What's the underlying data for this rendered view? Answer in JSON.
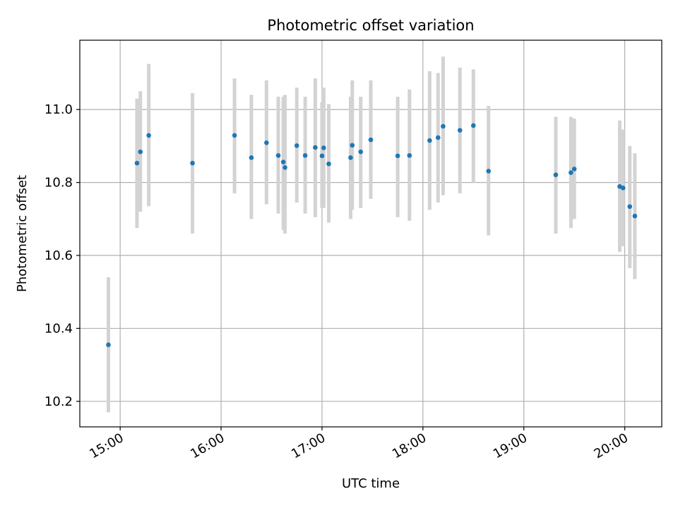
{
  "chart_data": {
    "type": "scatter",
    "title": "Photometric offset variation",
    "xlabel": "UTC time",
    "ylabel": "Photometric offset",
    "x_tick_labels": [
      "15:00",
      "16:00",
      "17:00",
      "18:00",
      "19:00",
      "20:00"
    ],
    "y_tick_labels": [
      "10.2",
      "10.4",
      "10.6",
      "10.8",
      "11.0"
    ],
    "y_ticks": [
      10.2,
      10.4,
      10.6,
      10.8,
      11.0
    ],
    "xlim": [
      "14:36",
      "20:22"
    ],
    "ylim": [
      10.13,
      11.19
    ],
    "grid": true,
    "marker_color": "#1f77b4",
    "errorbar_color": "#d3d3d3",
    "points": [
      {
        "x": "14:53",
        "y": 10.355,
        "lo": 10.17,
        "hi": 10.54
      },
      {
        "x": "15:10",
        "y": 10.853,
        "lo": 10.675,
        "hi": 11.03
      },
      {
        "x": "15:12",
        "y": 10.884,
        "lo": 10.72,
        "hi": 11.05
      },
      {
        "x": "15:17",
        "y": 10.929,
        "lo": 10.735,
        "hi": 11.125
      },
      {
        "x": "15:43",
        "y": 10.853,
        "lo": 10.66,
        "hi": 11.045
      },
      {
        "x": "16:08",
        "y": 10.929,
        "lo": 10.77,
        "hi": 11.085
      },
      {
        "x": "16:18",
        "y": 10.868,
        "lo": 10.7,
        "hi": 11.04
      },
      {
        "x": "16:27",
        "y": 10.909,
        "lo": 10.74,
        "hi": 11.08
      },
      {
        "x": "16:34",
        "y": 10.874,
        "lo": 10.715,
        "hi": 11.035
      },
      {
        "x": "16:37",
        "y": 10.856,
        "lo": 10.67,
        "hi": 11.035
      },
      {
        "x": "16:38",
        "y": 10.841,
        "lo": 10.66,
        "hi": 11.04
      },
      {
        "x": "16:45",
        "y": 10.901,
        "lo": 10.745,
        "hi": 11.06
      },
      {
        "x": "16:50",
        "y": 10.874,
        "lo": 10.715,
        "hi": 11.035
      },
      {
        "x": "16:56",
        "y": 10.896,
        "lo": 10.705,
        "hi": 11.085
      },
      {
        "x": "17:00",
        "y": 10.873,
        "lo": 10.73,
        "hi": 11.02
      },
      {
        "x": "17:01",
        "y": 10.895,
        "lo": 10.73,
        "hi": 11.06
      },
      {
        "x": "17:04",
        "y": 10.851,
        "lo": 10.69,
        "hi": 11.015
      },
      {
        "x": "17:17",
        "y": 10.868,
        "lo": 10.7,
        "hi": 11.035
      },
      {
        "x": "17:18",
        "y": 10.902,
        "lo": 10.725,
        "hi": 11.08
      },
      {
        "x": "17:23",
        "y": 10.884,
        "lo": 10.73,
        "hi": 11.035
      },
      {
        "x": "17:29",
        "y": 10.917,
        "lo": 10.755,
        "hi": 11.08
      },
      {
        "x": "17:45",
        "y": 10.873,
        "lo": 10.705,
        "hi": 11.035
      },
      {
        "x": "17:52",
        "y": 10.874,
        "lo": 10.695,
        "hi": 11.055
      },
      {
        "x": "18:04",
        "y": 10.915,
        "lo": 10.725,
        "hi": 11.105
      },
      {
        "x": "18:09",
        "y": 10.923,
        "lo": 10.745,
        "hi": 11.1
      },
      {
        "x": "18:12",
        "y": 10.954,
        "lo": 10.765,
        "hi": 11.145
      },
      {
        "x": "18:22",
        "y": 10.943,
        "lo": 10.77,
        "hi": 11.115
      },
      {
        "x": "18:30",
        "y": 10.956,
        "lo": 10.8,
        "hi": 11.11
      },
      {
        "x": "18:39",
        "y": 10.831,
        "lo": 10.655,
        "hi": 11.01
      },
      {
        "x": "19:19",
        "y": 10.821,
        "lo": 10.66,
        "hi": 10.98
      },
      {
        "x": "19:28",
        "y": 10.827,
        "lo": 10.675,
        "hi": 10.98
      },
      {
        "x": "19:30",
        "y": 10.837,
        "lo": 10.7,
        "hi": 10.975
      },
      {
        "x": "19:57",
        "y": 10.789,
        "lo": 10.61,
        "hi": 10.97
      },
      {
        "x": "19:59",
        "y": 10.785,
        "lo": 10.625,
        "hi": 10.945
      },
      {
        "x": "20:03",
        "y": 10.734,
        "lo": 10.565,
        "hi": 10.9
      },
      {
        "x": "20:06",
        "y": 10.708,
        "lo": 10.535,
        "hi": 10.88
      }
    ]
  }
}
